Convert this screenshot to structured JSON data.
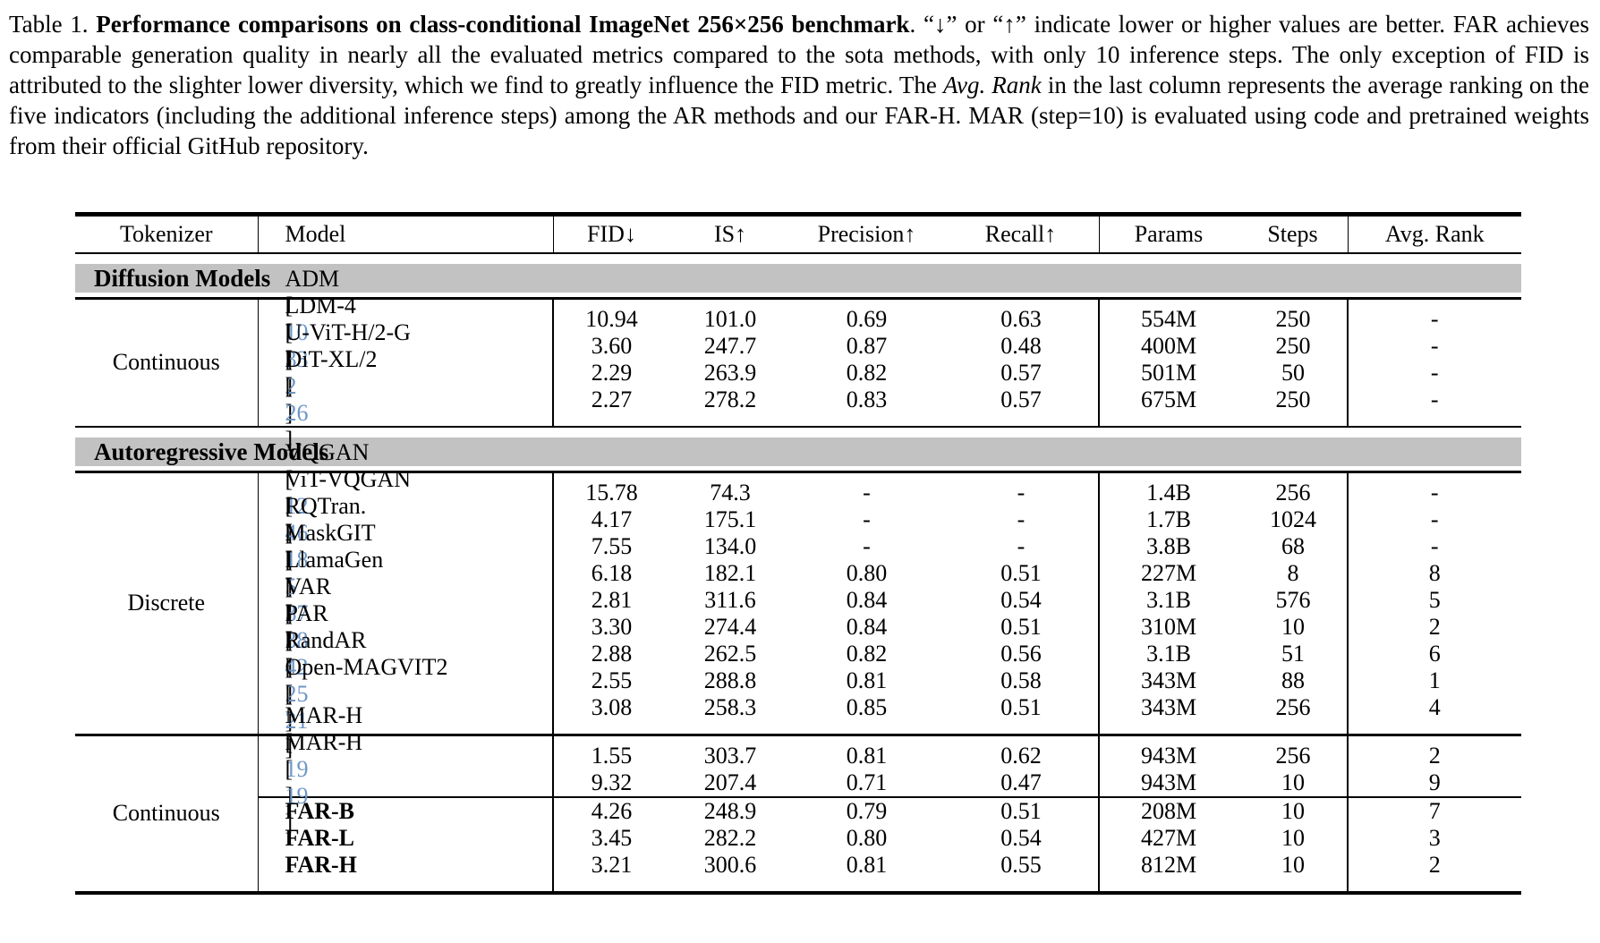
{
  "caption": {
    "prefix": "Table 1.",
    "bold_title": "Performance comparisons on class-conditional ImageNet 256×256 benchmark",
    "rest_1": ". “↓” or “↑” indicate lower or higher values are better. FAR achieves comparable generation quality in nearly all the evaluated metrics compared to the sota methods, with only 10 inference steps. The only exception of FID is attributed to the slighter lower diversity, which we find to greatly influence the FID metric. The ",
    "italic_phrase": "Avg. Rank",
    "rest_2": " in the last column represents the average ranking on the five indicators (including the additional inference steps) among the AR methods and our FAR-H. MAR (step=10) is evaluated using code and pretrained weights from their official GitHub repository."
  },
  "table": {
    "headers": [
      "Tokenizer",
      "Model",
      "FID↓",
      "IS↑",
      "Precision↑",
      "Recall↑",
      "Params",
      "Steps",
      "Avg. Rank"
    ],
    "sections": [
      {
        "title": "Diffusion Models",
        "groups": [
          {
            "tokenizer": "Continuous",
            "rows": [
              {
                "model": "ADM",
                "ref": "10",
                "bold": false,
                "values": [
                  "10.94",
                  "101.0",
                  "0.69",
                  "0.63",
                  "554M",
                  "250",
                  "-"
                ]
              },
              {
                "model": "LDM-4",
                "ref": "33",
                "bold": false,
                "values": [
                  "3.60",
                  "247.7",
                  "0.87",
                  "0.48",
                  "400M",
                  "250",
                  "-"
                ]
              },
              {
                "model": "U-ViT-H/2-G",
                "ref": "2",
                "bold": false,
                "values": [
                  "2.29",
                  "263.9",
                  "0.82",
                  "0.57",
                  "501M",
                  "50",
                  "-"
                ]
              },
              {
                "model": "DiT-XL/2",
                "ref": "26",
                "bold": false,
                "values": [
                  "2.27",
                  "278.2",
                  "0.83",
                  "0.57",
                  "675M",
                  "250",
                  "-"
                ]
              }
            ]
          }
        ]
      },
      {
        "title": "Autoregressive Models",
        "groups": [
          {
            "tokenizer": "Discrete",
            "rows": [
              {
                "model": "VQGAN",
                "ref": "12",
                "bold": false,
                "values": [
                  "15.78",
                  "74.3",
                  "-",
                  "-",
                  "1.4B",
                  "256",
                  "-"
                ]
              },
              {
                "model": "ViT-VQGAN",
                "ref": "46",
                "bold": false,
                "values": [
                  "4.17",
                  "175.1",
                  "-",
                  "-",
                  "1.7B",
                  "1024",
                  "-"
                ]
              },
              {
                "model": "RQTran.",
                "ref": "18",
                "bold": false,
                "values": [
                  "7.55",
                  "134.0",
                  "-",
                  "-",
                  "3.8B",
                  "68",
                  "-"
                ]
              },
              {
                "model": "MaskGIT",
                "ref": "5",
                "bold": false,
                "values": [
                  "6.18",
                  "182.1",
                  "0.80",
                  "0.51",
                  "227M",
                  "8",
                  "8"
                ]
              },
              {
                "model": "LlamaGen",
                "ref": "37",
                "bold": false,
                "values": [
                  "2.81",
                  "311.6",
                  "0.84",
                  "0.54",
                  "3.1B",
                  "576",
                  "5"
                ]
              },
              {
                "model": "VAR",
                "ref": "38",
                "bold": false,
                "values": [
                  "3.30",
                  "274.4",
                  "0.84",
                  "0.51",
                  "310M",
                  "10",
                  "2"
                ]
              },
              {
                "model": "PAR",
                "ref": "42",
                "bold": false,
                "values": [
                  "2.88",
                  "262.5",
                  "0.82",
                  "0.56",
                  "3.1B",
                  "51",
                  "6"
                ]
              },
              {
                "model": "RandAR",
                "ref": "25",
                "bold": false,
                "values": [
                  "2.55",
                  "288.8",
                  "0.81",
                  "0.58",
                  "343M",
                  "88",
                  "1"
                ]
              },
              {
                "model": "Open-MAGVIT2",
                "ref": "21",
                "bold": false,
                "values": [
                  "3.08",
                  "258.3",
                  "0.85",
                  "0.51",
                  "343M",
                  "256",
                  "4"
                ]
              }
            ]
          },
          {
            "tokenizer": "Continuous",
            "divider_before_row": 2,
            "rows": [
              {
                "model": "MAR-H",
                "ref": "19",
                "bold": false,
                "values": [
                  "1.55",
                  "303.7",
                  "0.81",
                  "0.62",
                  "943M",
                  "256",
                  "2"
                ]
              },
              {
                "model": "MAR-H",
                "ref": "19",
                "bold": false,
                "values": [
                  "9.32",
                  "207.4",
                  "0.71",
                  "0.47",
                  "943M",
                  "10",
                  "9"
                ]
              },
              {
                "model": "FAR-B",
                "ref": "",
                "bold": true,
                "values": [
                  "4.26",
                  "248.9",
                  "0.79",
                  "0.51",
                  "208M",
                  "10",
                  "7"
                ]
              },
              {
                "model": "FAR-L",
                "ref": "",
                "bold": true,
                "values": [
                  "3.45",
                  "282.2",
                  "0.80",
                  "0.54",
                  "427M",
                  "10",
                  "3"
                ]
              },
              {
                "model": "FAR-H",
                "ref": "",
                "bold": true,
                "values": [
                  "3.21",
                  "300.6",
                  "0.81",
                  "0.55",
                  "812M",
                  "10",
                  "2"
                ]
              }
            ]
          }
        ]
      }
    ]
  },
  "colors": {
    "citation_blue": "#6e96c6",
    "section_bar_gray": "#c2c2c2"
  }
}
